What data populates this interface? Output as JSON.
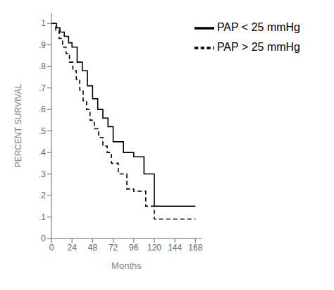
{
  "chart_data": {
    "type": "line",
    "title": "",
    "xlabel": "Months",
    "ylabel": "PERCENT SURVIVAL",
    "xlim": [
      0,
      175
    ],
    "ylim": [
      0,
      1.05
    ],
    "xticks": [
      0,
      24,
      48,
      72,
      96,
      120,
      144,
      168
    ],
    "yticks": [
      0,
      {
        "value": 0.1,
        "label": ".1"
      },
      {
        "value": 0.2,
        "label": ".2"
      },
      {
        "value": 0.3,
        "label": ".3"
      },
      {
        "value": 0.4,
        "label": ".4"
      },
      {
        "value": 0.5,
        "label": ".5"
      },
      {
        "value": 0.6,
        "label": ".6"
      },
      {
        "value": 0.7,
        "label": ".7"
      },
      {
        "value": 0.8,
        "label": ".8"
      },
      {
        "value": 0.9,
        "label": ".9"
      },
      1
    ],
    "grid": false,
    "legend": "upper right",
    "series": [
      {
        "name": "PAP < 25 mmHg",
        "color": "#000000",
        "line_style": "solid",
        "x": [
          0,
          6,
          6,
          10,
          10,
          15,
          15,
          20,
          20,
          24,
          24,
          30,
          30,
          36,
          36,
          42,
          42,
          48,
          48,
          54,
          54,
          60,
          60,
          66,
          66,
          72,
          72,
          84,
          84,
          96,
          96,
          108,
          108,
          120,
          120,
          132,
          132,
          168
        ],
        "values": [
          1.0,
          1.0,
          0.98,
          0.98,
          0.96,
          0.96,
          0.94,
          0.94,
          0.91,
          0.91,
          0.89,
          0.89,
          0.82,
          0.82,
          0.78,
          0.78,
          0.71,
          0.71,
          0.65,
          0.65,
          0.6,
          0.6,
          0.56,
          0.56,
          0.52,
          0.52,
          0.45,
          0.45,
          0.4,
          0.4,
          0.38,
          0.38,
          0.3,
          0.3,
          0.15,
          0.15,
          0.15,
          0.15
        ]
      },
      {
        "name": "PAP > 25 mmHg",
        "color": "#000000",
        "line_style": "dashed",
        "x": [
          0,
          5,
          5,
          9,
          9,
          13,
          13,
          17,
          17,
          21,
          21,
          25,
          25,
          29,
          29,
          33,
          33,
          37,
          37,
          41,
          41,
          45,
          45,
          50,
          50,
          55,
          55,
          60,
          60,
          65,
          65,
          70,
          70,
          78,
          78,
          88,
          88,
          96,
          96,
          110,
          110,
          120,
          120,
          130,
          130,
          168
        ],
        "values": [
          1.0,
          1.0,
          0.97,
          0.97,
          0.93,
          0.93,
          0.89,
          0.89,
          0.86,
          0.86,
          0.82,
          0.82,
          0.78,
          0.78,
          0.74,
          0.74,
          0.69,
          0.69,
          0.64,
          0.64,
          0.6,
          0.6,
          0.55,
          0.55,
          0.51,
          0.51,
          0.47,
          0.47,
          0.43,
          0.43,
          0.4,
          0.4,
          0.35,
          0.35,
          0.3,
          0.3,
          0.23,
          0.23,
          0.22,
          0.22,
          0.15,
          0.15,
          0.09,
          0.09,
          0.09,
          0.09
        ]
      }
    ]
  }
}
